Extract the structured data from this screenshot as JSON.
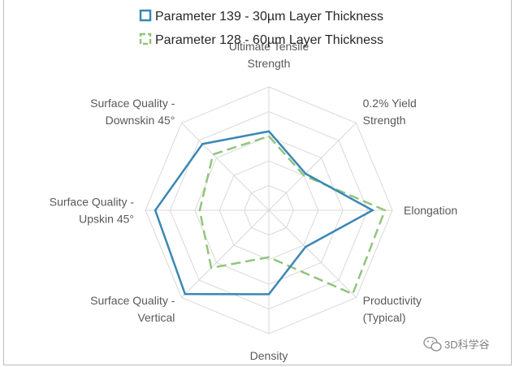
{
  "chart_data": {
    "type": "radar",
    "axes": [
      "Ultimate Tensile Strength",
      "0.2% Yield Strength",
      "Elongation",
      "Productivity (Typical)",
      "Density",
      "Surface Quality - Vertical",
      "Surface Quality - Upskin 45°",
      "Surface Quality - Downskin 45°"
    ],
    "axis_label_lines": [
      [
        "Ultimate Tensile",
        "Strength"
      ],
      [
        "0.2% Yield",
        "Strength"
      ],
      [
        "Elongation"
      ],
      [
        "Productivity",
        "(Typical)"
      ],
      [
        "Density"
      ],
      [
        "Surface Quality -",
        "Vertical"
      ],
      [
        "Surface Quality -",
        "Upskin 45°"
      ],
      [
        "Surface Quality -",
        "Downskin 45°"
      ]
    ],
    "scale_max": 5,
    "grid_levels": 5,
    "legend_position": "top",
    "series": [
      {
        "name": "Parameter 139 - 30µm Layer Thickness",
        "values": [
          3.2,
          2.1,
          4.2,
          2.1,
          3.4,
          4.8,
          4.6,
          3.8
        ],
        "color": "#3a87b4",
        "style": "solid"
      },
      {
        "name": "Parameter 128 - 60µm Layer Thickness",
        "values": [
          3.0,
          2.0,
          4.7,
          4.8,
          1.9,
          3.3,
          2.8,
          3.2
        ],
        "color": "#92c47d",
        "style": "dashed"
      }
    ]
  },
  "watermark": "3D科学谷"
}
